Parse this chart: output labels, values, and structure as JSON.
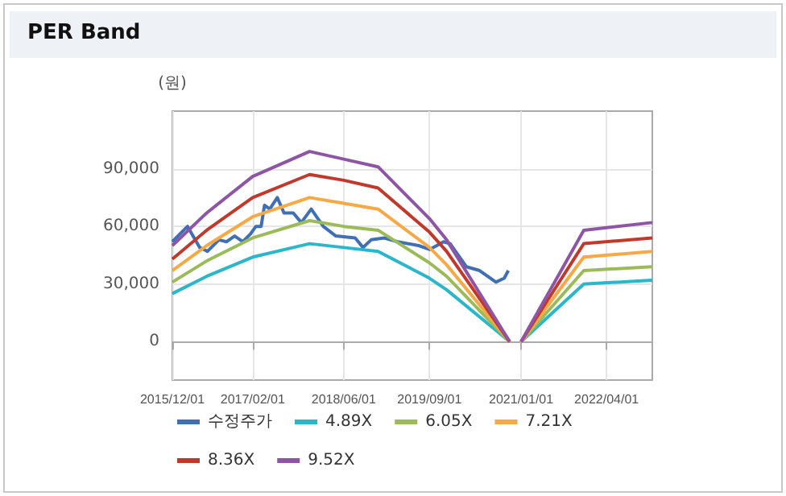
{
  "chart_data": {
    "type": "line",
    "title": "PER Band",
    "ylabel": "(원)",
    "x": [
      "2015-12-01",
      "2016-06-01",
      "2017-02-01",
      "2017-12-01",
      "2018-06-01",
      "2018-12-01",
      "2019-09-01",
      "2019-12-01",
      "2020-11-01",
      "2020-12-01",
      "2021-01-01",
      "2021-12-01",
      "2022-12-01"
    ],
    "series": [
      {
        "name": "수정주가",
        "color": "#3f6fb5",
        "x": [
          "2015-12-01",
          "2016-01-10",
          "2016-02-20",
          "2016-04-25",
          "2016-06-05",
          "2016-08-05",
          "2016-09-15",
          "2016-10-28",
          "2016-12-10",
          "2017-01-20",
          "2017-02-18",
          "2017-03-18",
          "2017-04-05",
          "2017-05-03",
          "2017-06-12",
          "2017-07-18",
          "2017-09-05",
          "2017-10-18",
          "2017-12-10",
          "2018-02-12",
          "2018-04-20",
          "2018-08-01",
          "2018-09-12",
          "2018-10-25",
          "2019-01-03",
          "2019-03-15",
          "2019-07-05",
          "2019-09-03",
          "2019-11-15",
          "2019-12-20",
          "2020-03-15",
          "2020-05-25",
          "2020-08-20",
          "2020-10-03",
          "2020-10-25"
        ],
        "values": [
          52000,
          56000,
          60000,
          49000,
          47000,
          53000,
          52000,
          55000,
          52000,
          56000,
          60000,
          60000,
          71000,
          69000,
          75000,
          67000,
          67000,
          62000,
          69000,
          60000,
          55000,
          54000,
          49000,
          53000,
          54000,
          52000,
          50000,
          48000,
          52000,
          51000,
          39000,
          37000,
          31000,
          33000,
          37000
        ]
      },
      {
        "name": "4.89X",
        "color": "#2bb6c9",
        "values": [
          25000,
          34000,
          44000,
          51000,
          49000,
          47000,
          33000,
          27000,
          0,
          null,
          0,
          30000,
          32000
        ]
      },
      {
        "name": "6.05X",
        "color": "#9bbb59",
        "values": [
          31000,
          42000,
          54000,
          63000,
          60000,
          58000,
          41000,
          34000,
          0,
          null,
          0,
          37000,
          39000
        ]
      },
      {
        "name": "7.21X",
        "color": "#f6a945",
        "values": [
          37000,
          50000,
          65000,
          75000,
          72000,
          69000,
          49000,
          40000,
          0,
          null,
          0,
          44000,
          47000
        ]
      },
      {
        "name": "8.36X",
        "color": "#c0392b",
        "values": [
          43000,
          58000,
          75000,
          87000,
          84000,
          80000,
          57000,
          47000,
          0,
          null,
          0,
          51000,
          54000
        ]
      },
      {
        "name": "9.52X",
        "color": "#8e55a5",
        "values": [
          50000,
          67000,
          86000,
          99000,
          95000,
          91000,
          64000,
          53000,
          0,
          null,
          0,
          58000,
          62000
        ]
      }
    ],
    "xlim": [
      "2015-12-01",
      "2022-12-01"
    ],
    "xticks": [
      {
        "value": "2015-12-01",
        "label": "2015/12/01"
      },
      {
        "value": "2017-02-01",
        "label": "2017/02/01"
      },
      {
        "value": "2018-06-01",
        "label": "2018/06/01"
      },
      {
        "value": "2019-09-01",
        "label": "2019/09/01"
      },
      {
        "value": "2021-01-01",
        "label": "2021/01/01"
      },
      {
        "value": "2022-04-01",
        "label": "2022/04/01"
      }
    ],
    "ylim": [
      -20000,
      120000
    ],
    "yticks": [
      {
        "value": 0,
        "label": "0"
      },
      {
        "value": 30000,
        "label": "30,000"
      },
      {
        "value": 60000,
        "label": "60,000"
      },
      {
        "value": 90000,
        "label": "90,000"
      }
    ],
    "grid": true,
    "legend": "bottom",
    "marker": "none",
    "line_style": "solid"
  }
}
